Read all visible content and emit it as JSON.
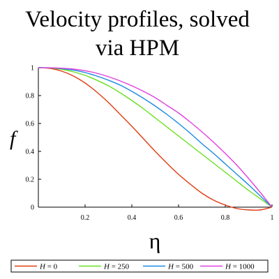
{
  "chart_data": {
    "type": "line",
    "title_lines": [
      "Velocity profiles, solved",
      "via HPM"
    ],
    "xlabel": "η",
    "ylabel": "f",
    "xlim": [
      0,
      1
    ],
    "ylim": [
      0,
      1
    ],
    "x_ticks": [
      0.2,
      0.4,
      0.6,
      0.8,
      1
    ],
    "x_tick_labels": [
      "0.2",
      "0.4",
      "0.6",
      "0.8",
      "1"
    ],
    "y_ticks": [
      0,
      0.2,
      0.4,
      0.6,
      0.8,
      1
    ],
    "y_tick_labels": [
      "0",
      "0.2",
      "0.4",
      "0.6",
      "0.8",
      "1"
    ],
    "grid": false,
    "legend_placement": "bottom",
    "legend_var": "H",
    "x": [
      0,
      0.05,
      0.1,
      0.15,
      0.2,
      0.25,
      0.3,
      0.35,
      0.4,
      0.45,
      0.5,
      0.55,
      0.6,
      0.65,
      0.7,
      0.75,
      0.8,
      0.85,
      0.9,
      0.95,
      1
    ],
    "series": [
      {
        "name": "H = 0",
        "legend_value": "= 0",
        "color": "#e03c12",
        "values": [
          1.0,
          0.995,
          0.975,
          0.94,
          0.89,
          0.825,
          0.75,
          0.665,
          0.58,
          0.49,
          0.4,
          0.315,
          0.235,
          0.165,
          0.1,
          0.05,
          0.015,
          -0.01,
          -0.02,
          -0.02,
          0.0
        ]
      },
      {
        "name": "H = 250",
        "legend_value": "= 250",
        "color": "#66e01c",
        "values": [
          1.0,
          0.998,
          0.988,
          0.97,
          0.945,
          0.91,
          0.87,
          0.82,
          0.765,
          0.705,
          0.64,
          0.575,
          0.51,
          0.445,
          0.38,
          0.315,
          0.25,
          0.185,
          0.12,
          0.06,
          0.0
        ]
      },
      {
        "name": "H = 500",
        "legend_value": "= 500",
        "color": "#1a8ae0",
        "values": [
          1.0,
          0.999,
          0.993,
          0.982,
          0.965,
          0.94,
          0.91,
          0.875,
          0.83,
          0.78,
          0.725,
          0.665,
          0.6,
          0.53,
          0.455,
          0.385,
          0.31,
          0.235,
          0.16,
          0.08,
          0.0
        ]
      },
      {
        "name": "H = 1000",
        "legend_value": "= 1000",
        "color": "#e040e0",
        "values": [
          1.0,
          0.999,
          0.996,
          0.99,
          0.978,
          0.96,
          0.935,
          0.905,
          0.87,
          0.83,
          0.785,
          0.73,
          0.675,
          0.61,
          0.54,
          0.465,
          0.385,
          0.3,
          0.205,
          0.105,
          0.0
        ]
      }
    ]
  }
}
